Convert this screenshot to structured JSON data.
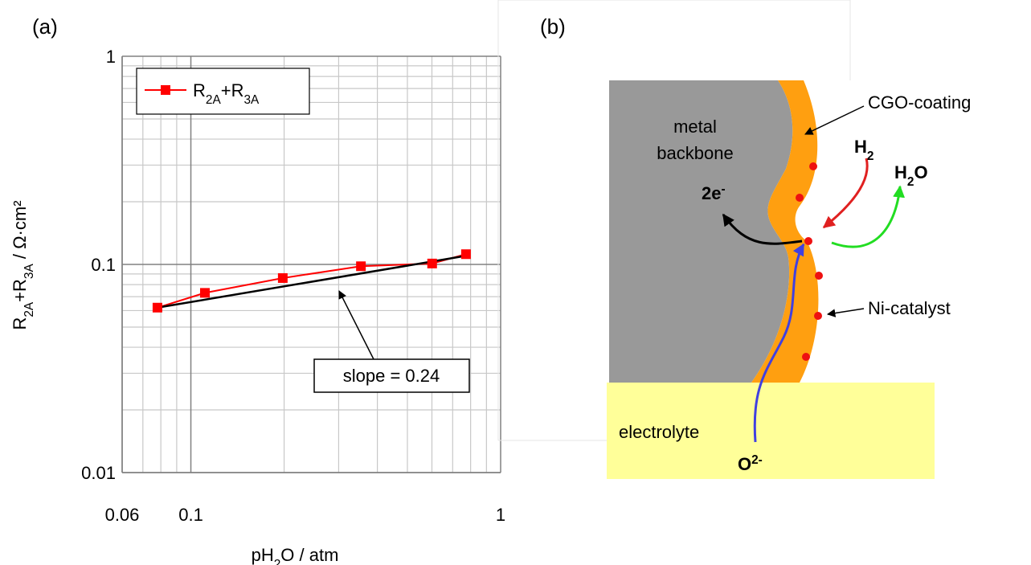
{
  "chart_data": {
    "type": "line",
    "panel_label": "(a)",
    "xlabel": "pH2O / atm",
    "ylabel": "R2A+R3A / Ω·cm²",
    "xscale": "log",
    "yscale": "log",
    "xlim": [
      0.06,
      1
    ],
    "ylim": [
      0.01,
      1
    ],
    "xticks": [
      0.06,
      0.1,
      1
    ],
    "yticks": [
      0.01,
      0.1,
      1
    ],
    "xminor": [
      0.07,
      0.08,
      0.09,
      0.2,
      0.3,
      0.4,
      0.5,
      0.6,
      0.7,
      0.8,
      0.9
    ],
    "yminor": [
      0.02,
      0.03,
      0.04,
      0.05,
      0.06,
      0.07,
      0.08,
      0.09,
      0.2,
      0.3,
      0.4,
      0.5,
      0.6,
      0.7,
      0.8,
      0.9
    ],
    "grid": true,
    "legend": "upper left",
    "x": [
      0.078,
      0.111,
      0.198,
      0.354,
      0.601,
      0.773
    ],
    "series": [
      {
        "name": "R2A+R3A",
        "color": "#ff0000",
        "values": [
          0.062,
          0.073,
          0.086,
          0.098,
          0.101,
          0.112
        ]
      }
    ],
    "fit_line": {
      "x": [
        0.078,
        0.773
      ],
      "values": [
        0.062,
        0.11
      ],
      "color": "#000000"
    },
    "annotation": "slope = 0.24"
  },
  "diagram": {
    "panel_label": "(b)",
    "labels": {
      "metal_backbone": [
        "metal",
        "backbone"
      ],
      "cgo_coating": "CGO-coating",
      "h2": "H2",
      "h2o": "H2O",
      "electrons": "2e-",
      "ni_catalyst": "Ni-catalyst",
      "electrolyte": "electrolyte",
      "oxide_ion": "O2-"
    }
  }
}
